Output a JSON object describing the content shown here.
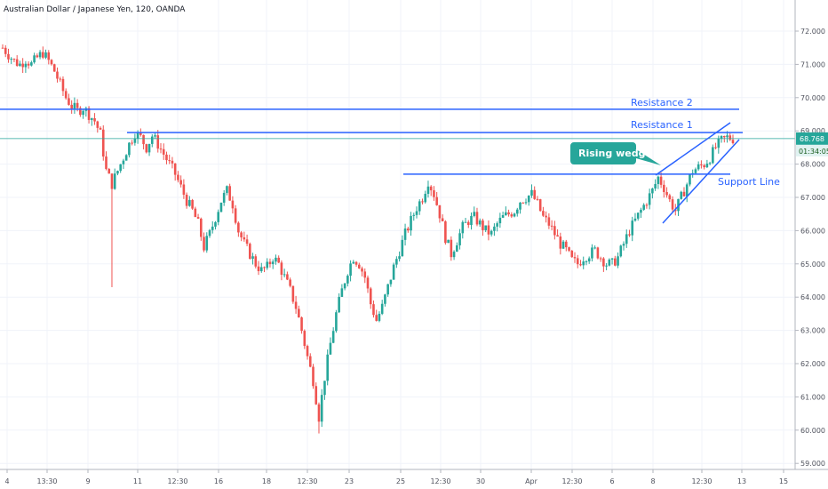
{
  "chart_data": {
    "type": "candlestick",
    "title": "Australian Dollar / Japanese Yen, 120, OANDA",
    "ylim": [
      58.7,
      72.6
    ],
    "y_ticks": [
      "59.000",
      "60.000",
      "61.000",
      "62.000",
      "63.000",
      "64.000",
      "65.000",
      "66.000",
      "67.000",
      "68.000",
      "69.000",
      "70.000",
      "71.000",
      "72.000"
    ],
    "x_ticks": [
      "4",
      "13:30",
      "9",
      "11",
      "12:30",
      "16",
      "18",
      "12:30",
      "23",
      "25",
      "12:30",
      "30",
      "Apr",
      "12:30",
      "6",
      "8",
      "12:30",
      "13",
      "15"
    ],
    "last_price": "68.768",
    "countdown": "01:34:05",
    "series_points": [
      71.5,
      71.3,
      71.1,
      71.0,
      71.15,
      71.0,
      71.2,
      71.35,
      71.1,
      70.8,
      70.4,
      70.0,
      69.75,
      69.6,
      69.7,
      69.5,
      69.3,
      68.9,
      67.8,
      67.4,
      67.8,
      68.2,
      68.6,
      68.95,
      68.8,
      68.5,
      68.85,
      68.6,
      68.3,
      68.0,
      67.7,
      67.3,
      66.9,
      66.6,
      66.2,
      65.5,
      65.9,
      66.4,
      66.9,
      67.2,
      66.8,
      66.0,
      65.6,
      65.3,
      65.0,
      64.8,
      64.9,
      65.2,
      65.0,
      64.6,
      64.2,
      63.7,
      63.0,
      62.2,
      61.5,
      60.4,
      61.6,
      62.6,
      63.5,
      64.2,
      64.8,
      65.2,
      65.0,
      64.6,
      63.8,
      63.3,
      63.7,
      64.3,
      64.9,
      65.4,
      65.9,
      66.3,
      66.7,
      67.0,
      67.5,
      67.1,
      66.5,
      65.8,
      65.3,
      65.7,
      66.1,
      66.3,
      66.4,
      66.2,
      66.0,
      65.9,
      66.2,
      66.4,
      66.5,
      66.6,
      66.9,
      67.0,
      67.1,
      66.8,
      66.4,
      66.2,
      65.9,
      65.6,
      65.4,
      65.1,
      65.0,
      65.2,
      65.3,
      65.4,
      65.2,
      65.0,
      65.0,
      65.2,
      65.6,
      66.0,
      66.3,
      66.6,
      66.9,
      67.2,
      67.6,
      67.3,
      66.9,
      66.6,
      67.0,
      67.4,
      67.8,
      67.9,
      68.0,
      68.2,
      68.5,
      68.7,
      68.8,
      68.77
    ],
    "spike_points": [
      {
        "i": 19,
        "low": 64.3
      },
      {
        "i": 55,
        "low": 59.9
      }
    ],
    "annotations": [
      {
        "text": "Resistance 2",
        "price": 69.65
      },
      {
        "text": "Resistance 1",
        "price": 68.95
      },
      {
        "text": "Support Line",
        "price": 67.7
      },
      {
        "text": "Rising wedge"
      }
    ],
    "colors": {
      "up": "#26a69a",
      "down": "#ef5350",
      "lines": "#2962ff",
      "callout": "#26a69a",
      "price_tag": "#26a69a"
    }
  }
}
